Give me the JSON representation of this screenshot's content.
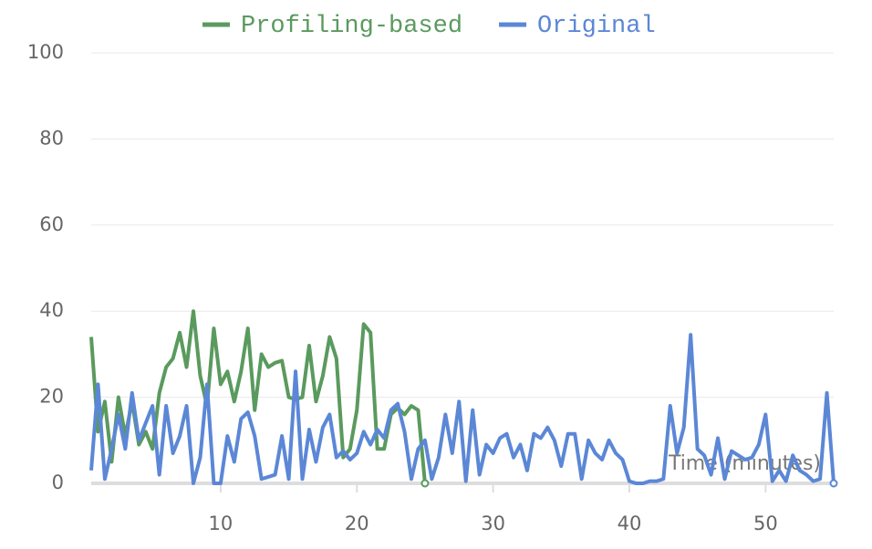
{
  "chart_data": {
    "type": "line",
    "x_label": "Time (minutes)",
    "xlim": [
      0.5,
      55
    ],
    "xticks": [
      10,
      20,
      30,
      40,
      50
    ],
    "ylim": [
      0,
      100
    ],
    "yticks": [
      0,
      20,
      40,
      60,
      80,
      100
    ],
    "grid": true,
    "series": [
      {
        "name": "Profiling-based",
        "color": "#5a9a5e",
        "x": [
          0.5,
          1,
          1.5,
          2,
          2.5,
          3,
          3.5,
          4,
          4.5,
          5,
          5.5,
          6,
          6.5,
          7,
          7.5,
          8,
          8.5,
          9,
          9.5,
          10,
          10.5,
          11,
          11.5,
          12,
          12.5,
          13,
          13.5,
          14,
          14.5,
          15,
          15.5,
          16,
          16.5,
          17,
          17.5,
          18,
          18.5,
          19,
          19.5,
          20,
          20.5,
          21,
          21.5,
          22,
          22.5,
          23,
          23.5,
          24,
          24.5,
          25
        ],
        "values": [
          34,
          12,
          19,
          5,
          20,
          11,
          19,
          9,
          12,
          8,
          21,
          27,
          29,
          35,
          27,
          40,
          25,
          18,
          36,
          23,
          26,
          19,
          26,
          36,
          17,
          30,
          27,
          28,
          28.5,
          20,
          19.5,
          20,
          32,
          19,
          25,
          34,
          29,
          6,
          8,
          17,
          37,
          35,
          8,
          8,
          16,
          17.5,
          16,
          18,
          17,
          0
        ]
      },
      {
        "name": "Original",
        "color": "#5b87d6",
        "x": [
          0.5,
          1,
          1.5,
          2,
          2.5,
          3,
          3.5,
          4,
          4.5,
          5,
          5.5,
          6,
          6.5,
          7,
          7.5,
          8,
          8.5,
          9,
          9.5,
          10,
          10.5,
          11,
          11.5,
          12,
          12.5,
          13,
          13.5,
          14,
          14.5,
          15,
          15.5,
          16,
          16.5,
          17,
          17.5,
          18,
          18.5,
          19,
          19.5,
          20,
          20.5,
          21,
          21.5,
          22,
          22.5,
          23,
          23.5,
          24,
          24.5,
          25,
          25.5,
          26,
          26.5,
          27,
          27.5,
          28,
          28.5,
          29,
          29.5,
          30,
          30.5,
          31,
          31.5,
          32,
          32.5,
          33,
          33.5,
          34,
          34.5,
          35,
          35.5,
          36,
          36.5,
          37,
          37.5,
          38,
          38.5,
          39,
          39.5,
          40,
          40.5,
          41,
          41.5,
          42,
          42.5,
          43,
          43.5,
          44,
          44.5,
          45,
          45.5,
          46,
          46.5,
          47,
          47.5,
          48,
          48.5,
          49,
          49.5,
          50,
          50.5,
          51,
          51.5,
          52,
          52.5,
          53,
          53.5,
          54,
          54.5,
          55
        ],
        "values": [
          3,
          23,
          1,
          8,
          16,
          8,
          21,
          10,
          14,
          18,
          2,
          18,
          7,
          11,
          18,
          0,
          6,
          23,
          0,
          0,
          11,
          5,
          15,
          16.5,
          11,
          1,
          1.5,
          2,
          11,
          1,
          26,
          1,
          12.5,
          5,
          13,
          16,
          6,
          7.5,
          5.5,
          7,
          12,
          9,
          12.5,
          10.5,
          17,
          18.5,
          12,
          1,
          8,
          10,
          1,
          6,
          16,
          7,
          19,
          0.5,
          17,
          2,
          9,
          7,
          10.5,
          11.5,
          6,
          9,
          3,
          11.5,
          10.5,
          13,
          10,
          4,
          11.5,
          11.5,
          1,
          10,
          7,
          5.5,
          10,
          7,
          5.5,
          0.5,
          0,
          0,
          0.5,
          0.5,
          1,
          18,
          7,
          13,
          34.5,
          8,
          6.5,
          2,
          10.5,
          1,
          7.5,
          6.5,
          5.5,
          6,
          9,
          16,
          0.5,
          3,
          0.5,
          6.5,
          3,
          2,
          0.5,
          1,
          21,
          0
        ]
      }
    ]
  }
}
